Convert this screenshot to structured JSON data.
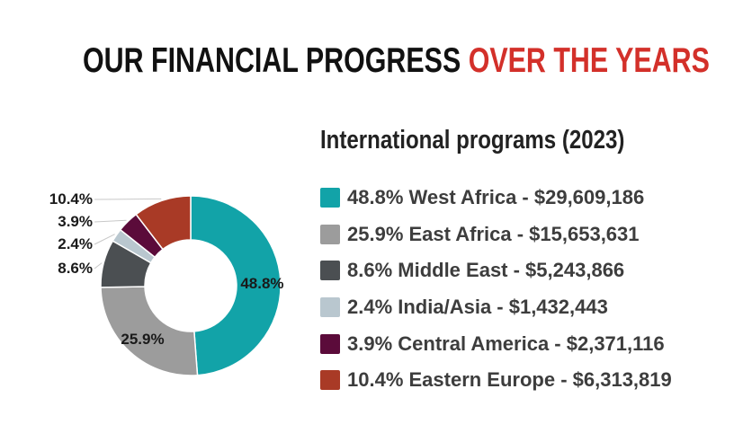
{
  "header": {
    "title_main": "OUR FINANCIAL PROGRESS ",
    "title_accent": "OVER THE YEARS"
  },
  "colors": {
    "accent": "#d3302a",
    "teal": "#12a3a8",
    "gray": "#9c9c9c",
    "dark_gray": "#4b4f52",
    "light_blue": "#b9c7cf",
    "maroon": "#5b0b3a",
    "rust": "#a93a26"
  },
  "chart_data": {
    "type": "pie",
    "title": "International programs (2023)",
    "donut": true,
    "legend_position": "right",
    "series": [
      {
        "name": "West Africa",
        "percent": 48.8,
        "amount": 29609186,
        "legend": "48.8% West Africa - $29,609,186",
        "label": "48.8%",
        "color": "#12a3a8"
      },
      {
        "name": "East Africa",
        "percent": 25.9,
        "amount": 15653631,
        "legend": "25.9% East Africa - $15,653,631",
        "label": "25.9%",
        "color": "#9c9c9c"
      },
      {
        "name": "Middle East",
        "percent": 8.6,
        "amount": 5243866,
        "legend": "8.6% Middle East - $5,243,866",
        "label": "8.6%",
        "color": "#4b4f52"
      },
      {
        "name": "India/Asia",
        "percent": 2.4,
        "amount": 1432443,
        "legend": "2.4% India/Asia - $1,432,443",
        "label": "2.4%",
        "color": "#b9c7cf"
      },
      {
        "name": "Central America",
        "percent": 3.9,
        "amount": 2371116,
        "legend": "3.9% Central America - $2,371,116",
        "label": "3.9%",
        "color": "#5b0b3a"
      },
      {
        "name": "Eastern Europe",
        "percent": 10.4,
        "amount": 6313819,
        "legend": "10.4% Eastern Europe - $6,313,819",
        "label": "10.4%",
        "color": "#a93a26"
      }
    ]
  }
}
